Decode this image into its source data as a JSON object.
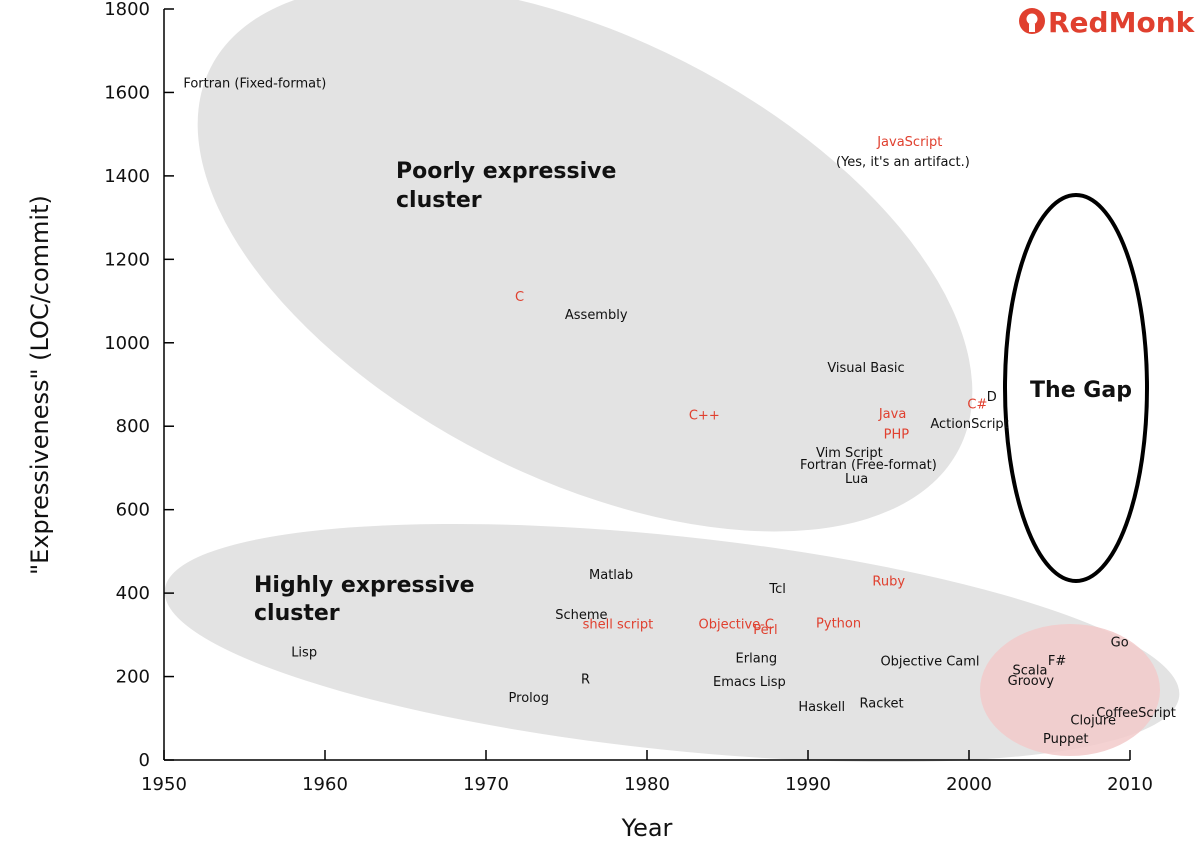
{
  "brand": {
    "name": "RedMonk",
    "color": "#e0402f",
    "icon": "redmonk-logo-icon"
  },
  "colors": {
    "highlight": "#e0402f",
    "normal": "#111111",
    "cluster_fill": "#e3e3e3",
    "recent_fill": "#f2caca",
    "gap_stroke": "#000000"
  },
  "chart_data": {
    "type": "scatter",
    "title": "",
    "xlabel": "Year",
    "ylabel": "\"Expressiveness\" (LOC/commit)",
    "xlim": [
      1950,
      2010
    ],
    "ylim": [
      0,
      1800
    ],
    "xticks": [
      "1950",
      "1960",
      "1970",
      "1980",
      "1990",
      "2000",
      "2010"
    ],
    "yticks": [
      "0",
      "200",
      "400",
      "600",
      "800",
      "1000",
      "1200",
      "1400",
      "1600",
      "1800"
    ],
    "grid": false,
    "points": [
      {
        "label": "Fortran (Fixed-format)",
        "x": 1951.2,
        "y": 1612,
        "highlight": false
      },
      {
        "label": "C",
        "x": 1971.8,
        "y": 1100,
        "highlight": true
      },
      {
        "label": "Assembly",
        "x": 1974.9,
        "y": 1057,
        "highlight": false
      },
      {
        "label": "Visual Basic",
        "x": 1991.2,
        "y": 930,
        "highlight": false
      },
      {
        "label": "D",
        "x": 2001.1,
        "y": 860,
        "highlight": false
      },
      {
        "label": "C#",
        "x": 1999.9,
        "y": 843,
        "highlight": true
      },
      {
        "label": "Java",
        "x": 1994.4,
        "y": 820,
        "highlight": true
      },
      {
        "label": "C++",
        "x": 1982.6,
        "y": 816,
        "highlight": true
      },
      {
        "label": "ActionScript",
        "x": 1997.6,
        "y": 796,
        "highlight": false
      },
      {
        "label": "PHP",
        "x": 1994.7,
        "y": 770,
        "highlight": true
      },
      {
        "label": "Vim Script",
        "x": 1990.5,
        "y": 726,
        "highlight": false
      },
      {
        "label": "Fortran (Free-format)",
        "x": 1989.5,
        "y": 697,
        "highlight": false
      },
      {
        "label": "Lua",
        "x": 1992.3,
        "y": 664,
        "highlight": false
      },
      {
        "label": "JavaScript",
        "x": 1994.3,
        "y": 1472,
        "highlight": true
      },
      {
        "label": "Matlab",
        "x": 1976.4,
        "y": 434,
        "highlight": false
      },
      {
        "label": "Tcl",
        "x": 1987.6,
        "y": 400,
        "highlight": false
      },
      {
        "label": "Ruby",
        "x": 1994.0,
        "y": 418,
        "highlight": true
      },
      {
        "label": "Scheme",
        "x": 1974.3,
        "y": 338,
        "highlight": false
      },
      {
        "label": "shell script",
        "x": 1976.0,
        "y": 315,
        "highlight": true
      },
      {
        "label": "Objective-C",
        "x": 1983.2,
        "y": 315,
        "highlight": true
      },
      {
        "label": "Python",
        "x": 1990.5,
        "y": 317,
        "highlight": true
      },
      {
        "label": "Perl",
        "x": 1986.6,
        "y": 302,
        "highlight": true
      },
      {
        "label": "Lisp",
        "x": 1957.9,
        "y": 248,
        "highlight": false
      },
      {
        "label": "Erlang",
        "x": 1985.5,
        "y": 234,
        "highlight": false
      },
      {
        "label": "Objective Caml",
        "x": 1994.5,
        "y": 226,
        "highlight": false
      },
      {
        "label": "R",
        "x": 1975.9,
        "y": 183,
        "highlight": false
      },
      {
        "label": "Emacs Lisp",
        "x": 1984.1,
        "y": 177,
        "highlight": false
      },
      {
        "label": "Prolog",
        "x": 1971.4,
        "y": 139,
        "highlight": false
      },
      {
        "label": "Haskell",
        "x": 1989.4,
        "y": 117,
        "highlight": false
      },
      {
        "label": "Racket",
        "x": 1993.2,
        "y": 126,
        "highlight": false
      },
      {
        "label": "Go",
        "x": 2008.8,
        "y": 272,
        "highlight": false
      },
      {
        "label": "F#",
        "x": 2004.9,
        "y": 228,
        "highlight": false
      },
      {
        "label": "Scala",
        "x": 2002.7,
        "y": 205,
        "highlight": false
      },
      {
        "label": "Groovy",
        "x": 2002.4,
        "y": 180,
        "highlight": false
      },
      {
        "label": "CoffeeScript",
        "x": 2007.9,
        "y": 103,
        "highlight": false
      },
      {
        "label": "Clojure",
        "x": 2006.3,
        "y": 85,
        "highlight": false
      },
      {
        "label": "Puppet",
        "x": 2004.6,
        "y": 41,
        "highlight": false
      }
    ],
    "annotations": {
      "poorly_expressive": [
        "Poorly expressive",
        "cluster"
      ],
      "highly_expressive": [
        "Highly expressive",
        "cluster"
      ],
      "gap": "The Gap",
      "javascript_note": "(Yes, it's an artifact.)"
    }
  }
}
